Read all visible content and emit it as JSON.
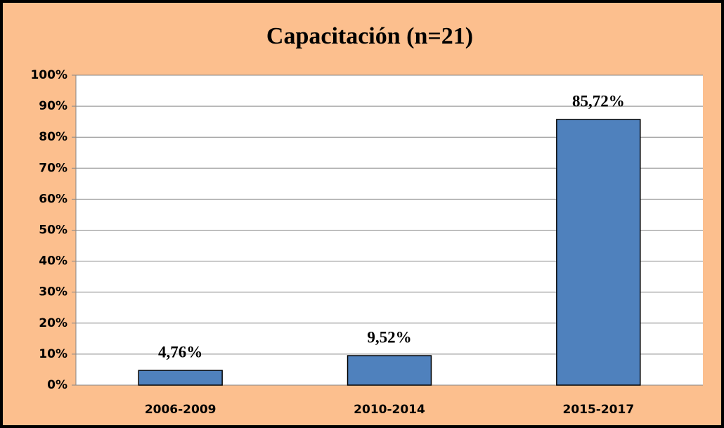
{
  "chart_data": {
    "type": "bar",
    "title": "Capacitación (n=21)",
    "categories": [
      "2006-2009",
      "2010-2014",
      "2015-2017"
    ],
    "values": [
      4.76,
      9.52,
      85.72
    ],
    "value_labels": [
      "4,76%",
      "9,52%",
      "85,72%"
    ],
    "color": "#4f81bd",
    "ylim": [
      0,
      100
    ],
    "yticks": [
      {
        "value": 0,
        "label": "0%"
      },
      {
        "value": 10,
        "label": "10%"
      },
      {
        "value": 20,
        "label": "20%"
      },
      {
        "value": 30,
        "label": "30%"
      },
      {
        "value": 40,
        "label": "40%"
      },
      {
        "value": 50,
        "label": "50%"
      },
      {
        "value": 60,
        "label": "60%"
      },
      {
        "value": 70,
        "label": "70%"
      },
      {
        "value": 80,
        "label": "80%"
      },
      {
        "value": 90,
        "label": "90%"
      },
      {
        "value": 100,
        "label": "100%"
      }
    ],
    "grid": true
  }
}
